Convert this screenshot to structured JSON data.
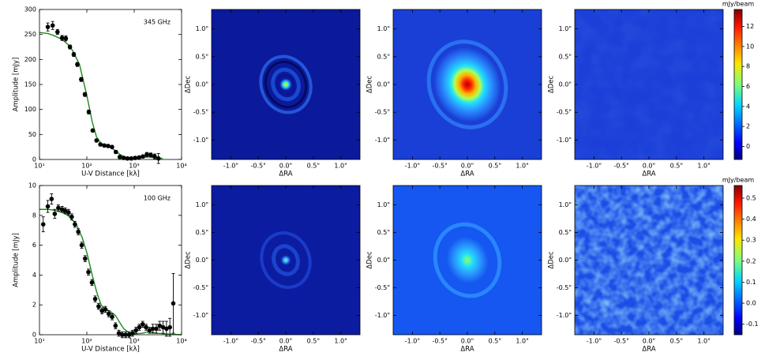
{
  "chart_data": [
    {
      "type": "scatter",
      "annotation": "345 GHz",
      "xlabel": "U-V Distance [kλ]",
      "ylabel": "Amplitude [mJy]",
      "xlog": true,
      "xlim": [
        10,
        10000
      ],
      "xticks": [
        {
          "value": 10,
          "label": "10¹"
        },
        {
          "value": 100,
          "label": "10²"
        },
        {
          "value": 1000,
          "label": "10³"
        },
        {
          "value": 10000,
          "label": "10⁴"
        }
      ],
      "ylim": [
        0,
        300
      ],
      "yticks": [
        0,
        50,
        100,
        150,
        200,
        250,
        300
      ],
      "color": "#000000",
      "x": [
        15,
        19,
        24,
        30,
        36,
        44,
        53,
        63,
        76,
        91,
        110,
        133,
        160,
        193,
        233,
        280,
        340,
        410,
        495,
        600,
        720,
        870,
        1050,
        1270,
        1530,
        1850,
        2230,
        2700,
        3250
      ],
      "values": [
        265,
        268,
        255,
        243,
        242,
        225,
        210,
        190,
        160,
        130,
        95,
        58,
        38,
        30,
        28,
        27,
        25,
        15,
        5,
        3,
        2,
        2,
        3,
        4,
        6,
        10,
        9,
        6,
        2
      ],
      "errors": [
        8,
        8,
        5,
        5,
        5,
        4,
        4,
        4,
        4,
        4,
        4,
        3,
        3,
        3,
        3,
        3,
        3,
        3,
        3,
        3,
        3,
        3,
        3,
        3,
        3,
        4,
        4,
        5,
        10
      ],
      "model": {
        "color": "#1a8a1a",
        "x": [
          10,
          15,
          20,
          30,
          40,
          50,
          70,
          100,
          130,
          160,
          200,
          250,
          300,
          400,
          500,
          700,
          1000,
          1500,
          2000,
          3000,
          4000
        ],
        "values": [
          254,
          252,
          248,
          240,
          230,
          218,
          190,
          128,
          75,
          45,
          32,
          28,
          25,
          18,
          10,
          3,
          2,
          4,
          5,
          3,
          2
        ]
      }
    },
    {
      "type": "image",
      "xlabel": "ΔRA",
      "ylabel": "ΔDec",
      "xlim": [
        -1.35,
        1.35
      ],
      "ylim": [
        -1.35,
        1.35
      ],
      "xticks": [
        {
          "value": -1.0,
          "label": "-1.0\""
        },
        {
          "value": -0.5,
          "label": "-0.5\""
        },
        {
          "value": 0.0,
          "label": "0.0\""
        },
        {
          "value": 0.5,
          "label": "0.5\""
        },
        {
          "value": 1.0,
          "label": "1.0\""
        }
      ],
      "yticks": [
        {
          "value": -1.0,
          "label": "-1.0\""
        },
        {
          "value": -0.5,
          "label": "-0.5\""
        },
        {
          "value": 0.0,
          "label": "0.0\""
        },
        {
          "value": 0.5,
          "label": "0.5\""
        },
        {
          "value": 1.0,
          "label": "1.0\""
        }
      ]
    },
    {
      "type": "image",
      "xlabel": "ΔRA",
      "ylabel": "ΔDec",
      "xlim": [
        -1.35,
        1.35
      ],
      "ylim": [
        -1.35,
        1.35
      ],
      "xticks": [
        {
          "value": -1.0,
          "label": "-1.0\""
        },
        {
          "value": -0.5,
          "label": "-0.5\""
        },
        {
          "value": 0.0,
          "label": "0.0\""
        },
        {
          "value": 0.5,
          "label": "0.5\""
        },
        {
          "value": 1.0,
          "label": "1.0\""
        }
      ],
      "yticks": [
        {
          "value": -1.0,
          "label": "-1.0\""
        },
        {
          "value": -0.5,
          "label": "-0.5\""
        },
        {
          "value": 0.0,
          "label": "0.0\""
        },
        {
          "value": 0.5,
          "label": "0.5\""
        },
        {
          "value": 1.0,
          "label": "1.0\""
        }
      ]
    },
    {
      "type": "image",
      "xlabel": "ΔRA",
      "ylabel": "ΔDec",
      "xlim": [
        -1.35,
        1.35
      ],
      "ylim": [
        -1.35,
        1.35
      ],
      "xticks": [
        {
          "value": -1.0,
          "label": "-1.0\""
        },
        {
          "value": -0.5,
          "label": "-0.5\""
        },
        {
          "value": 0.0,
          "label": "0.0\""
        },
        {
          "value": 0.5,
          "label": "0.5\""
        },
        {
          "value": 1.0,
          "label": "1.0\""
        }
      ],
      "yticks": [
        {
          "value": -1.0,
          "label": "-1.0\""
        },
        {
          "value": -0.5,
          "label": "-0.5\""
        },
        {
          "value": 0.0,
          "label": "0.0\""
        },
        {
          "value": 0.5,
          "label": "0.5\""
        },
        {
          "value": 1.0,
          "label": "1.0\""
        }
      ],
      "colorbar": {
        "label": "mJy/beam",
        "lim": [
          -1.3,
          13.7
        ],
        "ticks": [
          0,
          2,
          4,
          6,
          8,
          10,
          12
        ]
      }
    },
    {
      "type": "scatter",
      "annotation": "100 GHz",
      "xlabel": "U-V Distance [kλ]",
      "ylabel": "Amplitude [mJy]",
      "xlog": true,
      "xlim": [
        10,
        10000
      ],
      "xticks": [
        {
          "value": 10,
          "label": "10¹"
        },
        {
          "value": 100,
          "label": "10²"
        },
        {
          "value": 1000,
          "label": "10³"
        },
        {
          "value": 10000,
          "label": "10⁴"
        }
      ],
      "ylim": [
        0,
        10
      ],
      "yticks": [
        0,
        2,
        4,
        6,
        8,
        10
      ],
      "color": "#000000",
      "x": [
        12,
        15,
        18,
        21,
        25,
        30,
        35,
        41,
        48,
        56,
        66,
        78,
        92,
        108,
        128,
        150,
        177,
        209,
        246,
        290,
        342,
        403,
        475,
        560,
        660,
        780,
        920,
        1090,
        1280,
        1510,
        1780,
        2100,
        2480,
        2930,
        3450,
        4070,
        4800,
        5660,
        6680
      ],
      "values": [
        7.4,
        8.6,
        9.1,
        8.1,
        8.5,
        8.4,
        8.3,
        8.2,
        7.9,
        7.4,
        6.9,
        6.0,
        5.1,
        4.2,
        3.5,
        2.4,
        1.9,
        1.6,
        1.7,
        1.4,
        1.2,
        0.6,
        0.1,
        0,
        0,
        0,
        0.1,
        0.3,
        0.5,
        0.7,
        0.5,
        0.3,
        0.4,
        0.4,
        0.6,
        0.5,
        0.4,
        0.5,
        2.1
      ],
      "errors": [
        0.5,
        0.4,
        0.35,
        0.3,
        0.2,
        0.2,
        0.2,
        0.2,
        0.2,
        0.2,
        0.2,
        0.2,
        0.2,
        0.2,
        0.2,
        0.2,
        0.2,
        0.2,
        0.2,
        0.2,
        0.2,
        0.2,
        0.2,
        0.2,
        0.2,
        0.2,
        0.2,
        0.2,
        0.2,
        0.2,
        0.2,
        0.2,
        0.3,
        0.3,
        0.3,
        0.4,
        0.5,
        0.6,
        2.0
      ],
      "model": {
        "color": "#1a8a1a",
        "x": [
          10,
          15,
          20,
          30,
          40,
          60,
          80,
          100,
          130,
          160,
          200,
          250,
          300,
          400,
          500,
          600,
          800,
          1000,
          1500,
          2000,
          3000,
          5000,
          10000
        ],
        "values": [
          8.4,
          8.4,
          8.35,
          8.2,
          8.0,
          7.4,
          6.5,
          5.5,
          4.0,
          2.9,
          2.0,
          1.7,
          1.6,
          1.3,
          0.8,
          0.4,
          0.1,
          0.05,
          0.1,
          0.2,
          0.1,
          0.05,
          0
        ]
      }
    },
    {
      "type": "image",
      "xlabel": "ΔRA",
      "ylabel": "ΔDec",
      "xlim": [
        -1.35,
        1.35
      ],
      "ylim": [
        -1.35,
        1.35
      ],
      "xticks": [
        {
          "value": -1.0,
          "label": "-1.0\""
        },
        {
          "value": -0.5,
          "label": "-0.5\""
        },
        {
          "value": 0.0,
          "label": "0.0\""
        },
        {
          "value": 0.5,
          "label": "0.5\""
        },
        {
          "value": 1.0,
          "label": "1.0\""
        }
      ],
      "yticks": [
        {
          "value": -1.0,
          "label": "-1.0\""
        },
        {
          "value": -0.5,
          "label": "-0.5\""
        },
        {
          "value": 0.0,
          "label": "0.0\""
        },
        {
          "value": 0.5,
          "label": "0.5\""
        },
        {
          "value": 1.0,
          "label": "1.0\""
        }
      ]
    },
    {
      "type": "image",
      "xlabel": "ΔRA",
      "ylabel": "ΔDec",
      "xlim": [
        -1.35,
        1.35
      ],
      "ylim": [
        -1.35,
        1.35
      ],
      "xticks": [
        {
          "value": -1.0,
          "label": "-1.0\""
        },
        {
          "value": -0.5,
          "label": "-0.5\""
        },
        {
          "value": 0.0,
          "label": "0.0\""
        },
        {
          "value": 0.5,
          "label": "0.5\""
        },
        {
          "value": 1.0,
          "label": "1.0\""
        }
      ],
      "yticks": [
        {
          "value": -1.0,
          "label": "-1.0\""
        },
        {
          "value": -0.5,
          "label": "-0.5\""
        },
        {
          "value": 0.0,
          "label": "0.0\""
        },
        {
          "value": 0.5,
          "label": "0.5\""
        },
        {
          "value": 1.0,
          "label": "1.0\""
        }
      ]
    },
    {
      "type": "image",
      "xlabel": "ΔRA",
      "ylabel": "ΔDec",
      "xlim": [
        -1.35,
        1.35
      ],
      "ylim": [
        -1.35,
        1.35
      ],
      "xticks": [
        {
          "value": -1.0,
          "label": "-1.0\""
        },
        {
          "value": -0.5,
          "label": "-0.5\""
        },
        {
          "value": 0.0,
          "label": "0.0\""
        },
        {
          "value": 0.5,
          "label": "0.5\""
        },
        {
          "value": 1.0,
          "label": "1.0\""
        }
      ],
      "yticks": [
        {
          "value": -1.0,
          "label": "-1.0\""
        },
        {
          "value": -0.5,
          "label": "-0.5\""
        },
        {
          "value": 0.0,
          "label": "0.0\""
        },
        {
          "value": 0.5,
          "label": "0.5\""
        },
        {
          "value": 1.0,
          "label": "1.0\""
        }
      ],
      "colorbar": {
        "label": "mJy/beam",
        "lim": [
          -0.15,
          0.56
        ],
        "ticks": [
          -0.1,
          {
            "value": 0,
            "label": "0.0"
          },
          0.1,
          0.2,
          0.3,
          0.4,
          0.5
        ]
      }
    }
  ]
}
